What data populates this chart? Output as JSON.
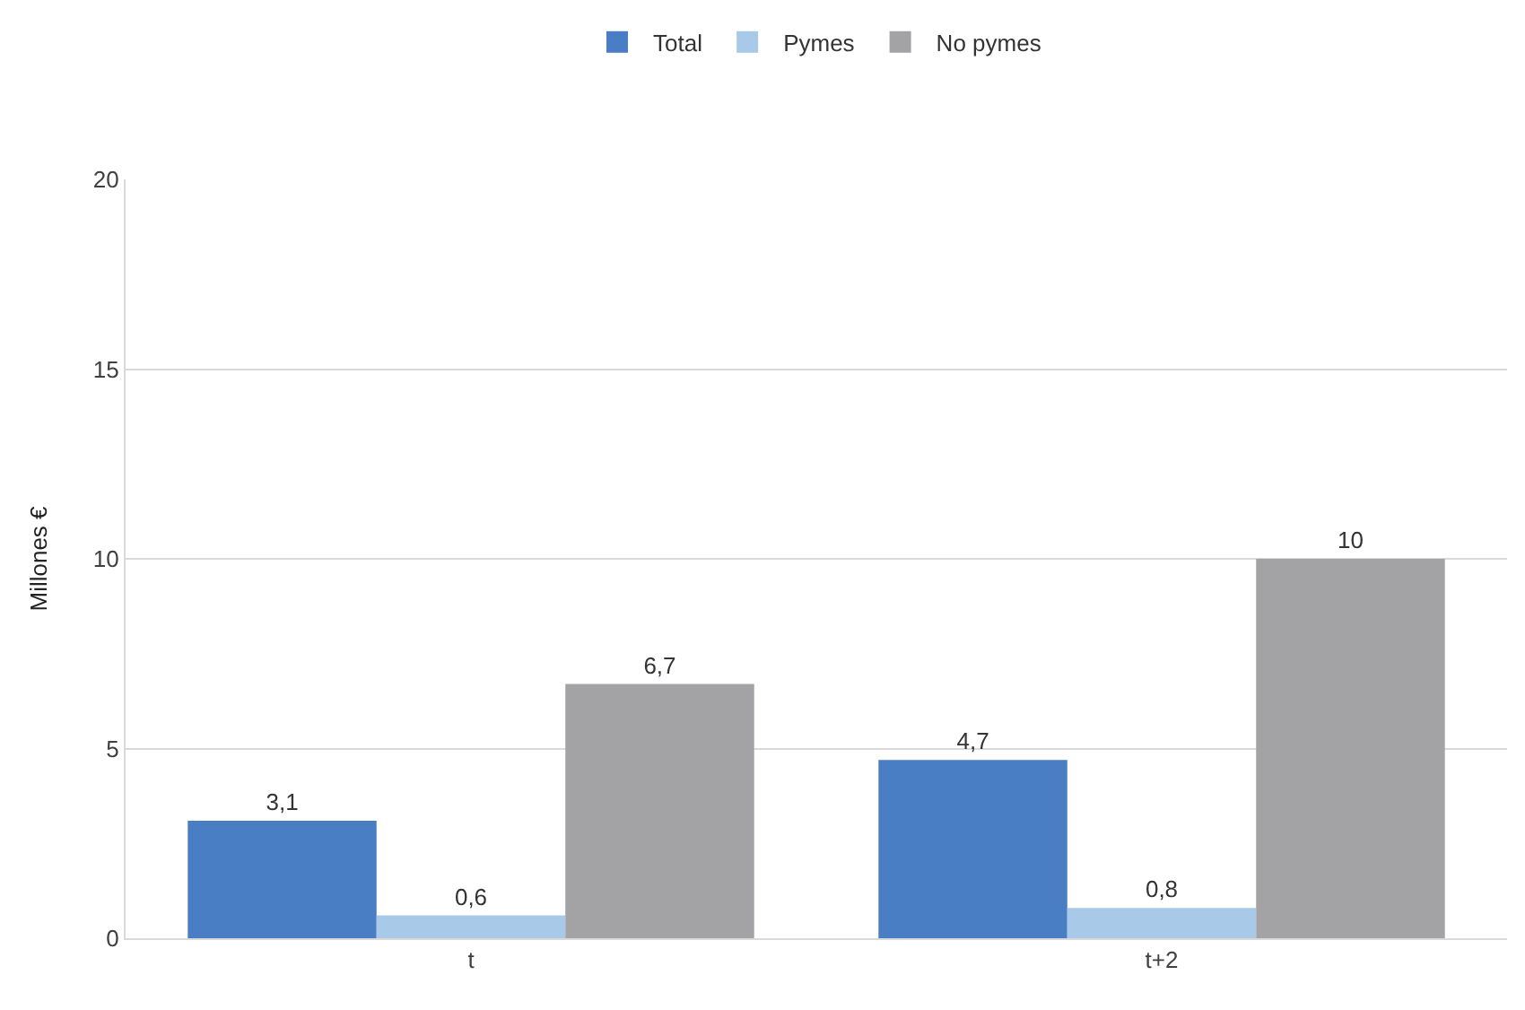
{
  "chart_data": {
    "type": "bar",
    "ylabel": "Millones €",
    "categories": [
      "t",
      "t+2"
    ],
    "series": [
      {
        "name": "Total",
        "color": "#4a7ec4",
        "values": [
          3.1,
          4.7
        ],
        "value_labels": [
          "3,1",
          "4,7"
        ]
      },
      {
        "name": "Pymes",
        "color": "#a9c9e8",
        "values": [
          0.6,
          0.8
        ],
        "value_labels": [
          "0,6",
          "0,8"
        ]
      },
      {
        "name": "No pymes",
        "color": "#a3a3a5",
        "values": [
          6.7,
          10
        ],
        "value_labels": [
          "6,7",
          "10"
        ]
      }
    ],
    "ylim": [
      0,
      20
    ],
    "yticks": [
      0,
      5,
      10,
      15,
      20
    ],
    "grid": "y",
    "legend": "top"
  }
}
